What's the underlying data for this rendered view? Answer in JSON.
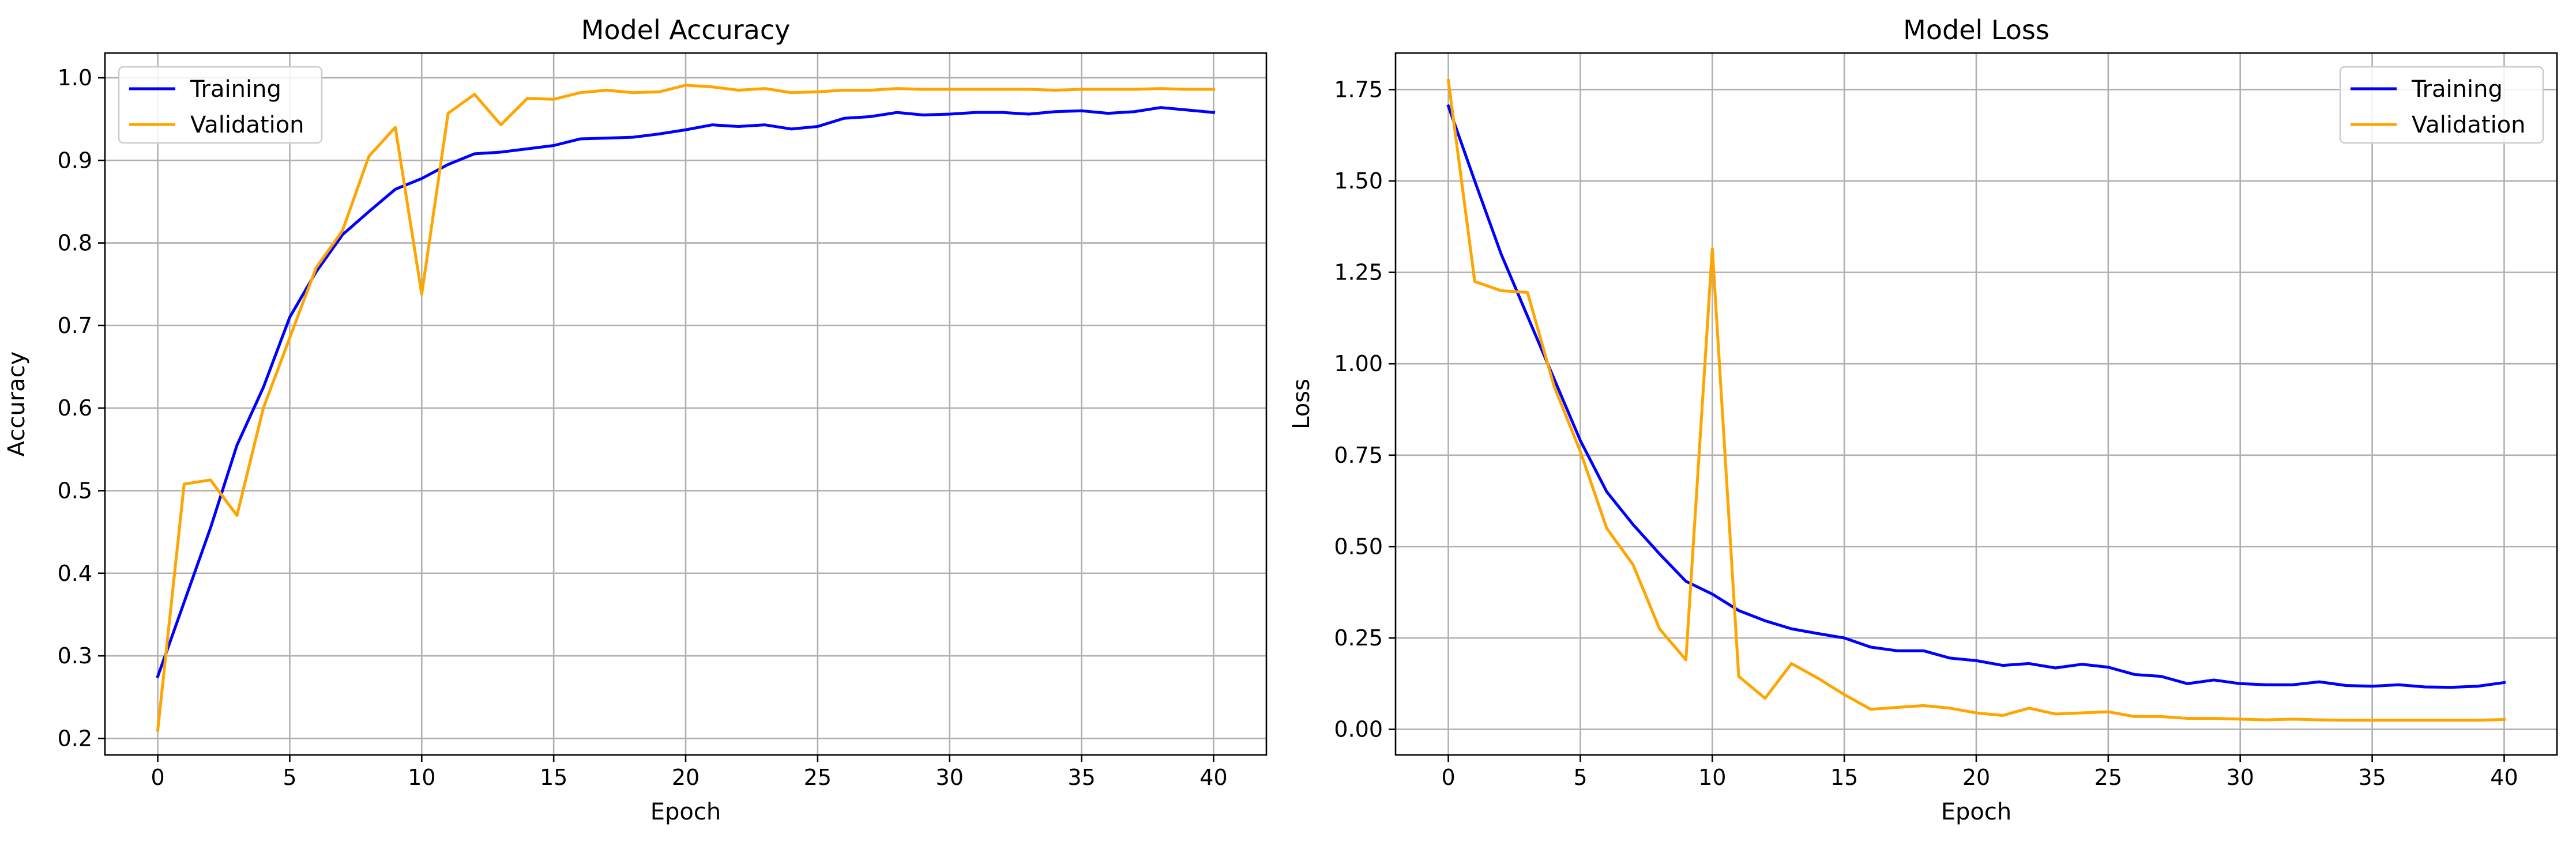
{
  "chart_data": [
    {
      "type": "line",
      "title": "Model Accuracy",
      "xlabel": "Epoch",
      "ylabel": "Accuracy",
      "xlim": [
        -2,
        42
      ],
      "ylim": [
        0.18,
        1.03
      ],
      "xticks": [
        0,
        5,
        10,
        15,
        20,
        25,
        30,
        35,
        40
      ],
      "yticks": [
        0.2,
        0.3,
        0.4,
        0.5,
        0.6,
        0.7,
        0.8,
        0.9,
        1.0
      ],
      "ytick_labels": [
        "0.2",
        "0.3",
        "0.4",
        "0.5",
        "0.6",
        "0.7",
        "0.8",
        "0.9",
        "1.0"
      ],
      "grid": true,
      "legend_position": "top-left",
      "x": [
        0,
        1,
        2,
        3,
        4,
        5,
        6,
        7,
        8,
        9,
        10,
        11,
        12,
        13,
        14,
        15,
        16,
        17,
        18,
        19,
        20,
        21,
        22,
        23,
        24,
        25,
        26,
        27,
        28,
        29,
        30,
        31,
        32,
        33,
        34,
        35,
        36,
        37,
        38,
        39,
        40
      ],
      "series": [
        {
          "name": "Training",
          "color": "#0000ff",
          "values": [
            0.275,
            0.365,
            0.455,
            0.555,
            0.625,
            0.71,
            0.765,
            0.81,
            0.838,
            0.865,
            0.878,
            0.895,
            0.908,
            0.91,
            0.914,
            0.918,
            0.926,
            0.927,
            0.928,
            0.932,
            0.937,
            0.943,
            0.941,
            0.943,
            0.938,
            0.941,
            0.951,
            0.953,
            0.958,
            0.955,
            0.956,
            0.958,
            0.958,
            0.956,
            0.959,
            0.96,
            0.957,
            0.959,
            0.964,
            0.961,
            0.958
          ]
        },
        {
          "name": "Validation",
          "color": "#ffa500",
          "values": [
            0.21,
            0.508,
            0.513,
            0.47,
            0.6,
            0.685,
            0.77,
            0.815,
            0.905,
            0.94,
            0.738,
            0.957,
            0.98,
            0.943,
            0.975,
            0.974,
            0.982,
            0.985,
            0.982,
            0.983,
            0.991,
            0.989,
            0.985,
            0.987,
            0.982,
            0.983,
            0.985,
            0.985,
            0.987,
            0.986,
            0.986,
            0.986,
            0.986,
            0.986,
            0.985,
            0.986,
            0.986,
            0.986,
            0.987,
            0.986,
            0.986
          ]
        }
      ]
    },
    {
      "type": "line",
      "title": "Model Loss",
      "xlabel": "Epoch",
      "ylabel": "Loss",
      "xlim": [
        -2,
        42
      ],
      "ylim": [
        -0.07,
        1.85
      ],
      "xticks": [
        0,
        5,
        10,
        15,
        20,
        25,
        30,
        35,
        40
      ],
      "yticks": [
        0,
        0.25,
        0.5,
        0.75,
        1.0,
        1.25,
        1.5,
        1.75
      ],
      "ytick_labels": [
        "0.00",
        "0.25",
        "0.50",
        "0.75",
        "1.00",
        "1.25",
        "1.50",
        "1.75"
      ],
      "grid": true,
      "legend_position": "top-right",
      "x": [
        0,
        1,
        2,
        3,
        4,
        5,
        6,
        7,
        8,
        9,
        10,
        11,
        12,
        13,
        14,
        15,
        16,
        17,
        18,
        19,
        20,
        21,
        22,
        23,
        24,
        25,
        26,
        27,
        28,
        29,
        30,
        31,
        32,
        33,
        34,
        35,
        36,
        37,
        38,
        39,
        40
      ],
      "series": [
        {
          "name": "Training",
          "color": "#0000ff",
          "values": [
            1.705,
            1.5,
            1.3,
            1.13,
            0.96,
            0.79,
            0.65,
            0.56,
            0.48,
            0.405,
            0.37,
            0.325,
            0.297,
            0.275,
            0.262,
            0.25,
            0.225,
            0.215,
            0.215,
            0.195,
            0.188,
            0.175,
            0.18,
            0.168,
            0.178,
            0.17,
            0.15,
            0.145,
            0.125,
            0.135,
            0.125,
            0.122,
            0.122,
            0.13,
            0.12,
            0.118,
            0.122,
            0.116,
            0.115,
            0.118,
            0.128
          ]
        },
        {
          "name": "Validation",
          "color": "#ffa500",
          "values": [
            1.775,
            1.225,
            1.2,
            1.195,
            0.94,
            0.76,
            0.55,
            0.45,
            0.275,
            0.19,
            1.315,
            0.145,
            0.085,
            0.18,
            0.14,
            0.095,
            0.055,
            0.06,
            0.065,
            0.058,
            0.045,
            0.038,
            0.058,
            0.042,
            0.045,
            0.048,
            0.035,
            0.035,
            0.03,
            0.03,
            0.028,
            0.026,
            0.028,
            0.026,
            0.025,
            0.025,
            0.025,
            0.025,
            0.025,
            0.025,
            0.027
          ]
        }
      ]
    }
  ]
}
